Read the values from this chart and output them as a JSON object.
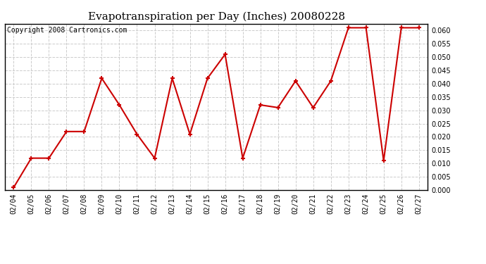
{
  "title": "Evapotranspiration per Day (Inches) 20080228",
  "copyright_text": "Copyright 2008 Cartronics.com",
  "dates": [
    "02/04",
    "02/05",
    "02/06",
    "02/07",
    "02/08",
    "02/09",
    "02/10",
    "02/11",
    "02/12",
    "02/13",
    "02/14",
    "02/15",
    "02/16",
    "02/17",
    "02/18",
    "02/19",
    "02/20",
    "02/21",
    "02/22",
    "02/23",
    "02/24",
    "02/25",
    "02/26",
    "02/27"
  ],
  "values": [
    0.001,
    0.012,
    0.012,
    0.022,
    0.022,
    0.042,
    0.032,
    0.021,
    0.012,
    0.042,
    0.021,
    0.042,
    0.051,
    0.012,
    0.032,
    0.031,
    0.041,
    0.031,
    0.041,
    0.061,
    0.061,
    0.011,
    0.061,
    0.061
  ],
  "line_color": "#cc0000",
  "marker": "+",
  "marker_size": 5,
  "marker_linewidth": 1.5,
  "line_width": 1.5,
  "ylim": [
    0.0,
    0.0625
  ],
  "ytick_values": [
    0.0,
    0.005,
    0.01,
    0.015,
    0.02,
    0.025,
    0.03,
    0.035,
    0.04,
    0.045,
    0.05,
    0.055,
    0.06
  ],
  "grid_color": "#cccccc",
  "grid_style": "--",
  "background_color": "#ffffff",
  "title_fontsize": 11,
  "copyright_fontsize": 7,
  "tick_fontsize": 7
}
